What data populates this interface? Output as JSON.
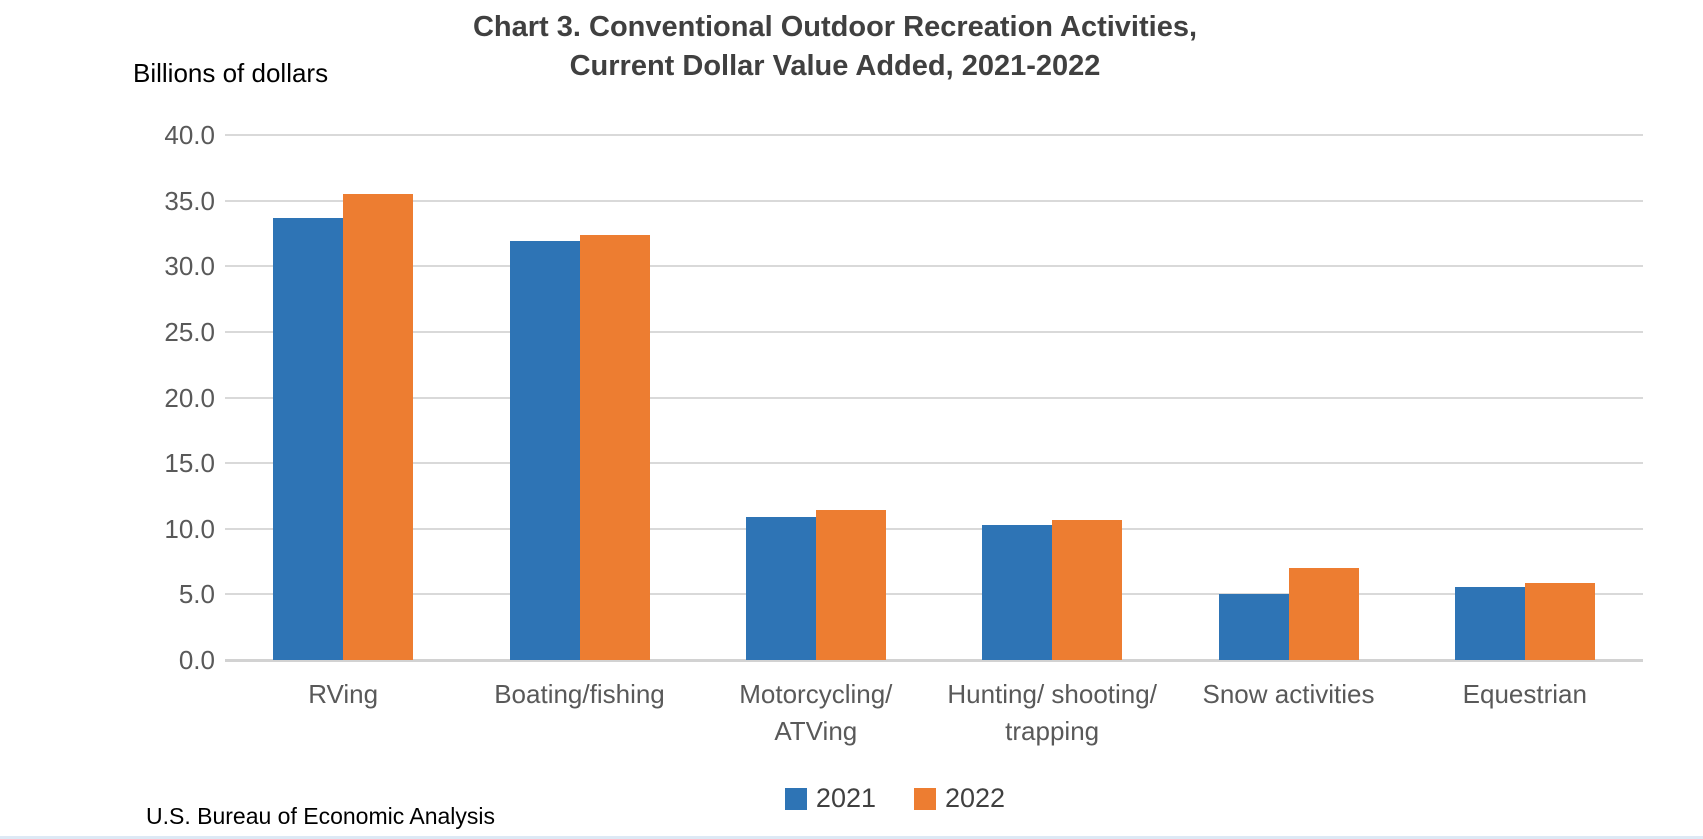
{
  "page": {
    "title_line1": "Chart 3. Conventional Outdoor Recreation Activities,",
    "title_line2": "Current Dollar Value Added, 2021-2022",
    "unit_label": "Billions of dollars",
    "source": "U.S. Bureau of Economic Analysis"
  },
  "colors": {
    "series_2021": "#2e74b5",
    "series_2022": "#ed7d31",
    "title_text": "#404040",
    "axis_text": "#595959",
    "gridline": "#d9d9d9"
  },
  "chart_data": {
    "type": "bar",
    "title": "Chart 3. Conventional Outdoor Recreation Activities, Current Dollar Value Added, 2021-2022",
    "ylabel": "Billions of dollars",
    "categories": [
      "RVing",
      "Boating/fishing",
      "Motorcycling/\nATVing",
      "Hunting/ shooting/\ntrapping",
      "Snow activities",
      "Equestrian"
    ],
    "series": [
      {
        "name": "2021",
        "color": "#2e74b5",
        "values": [
          33.7,
          31.9,
          10.9,
          10.3,
          5.0,
          5.6
        ]
      },
      {
        "name": "2022",
        "color": "#ed7d31",
        "values": [
          35.5,
          32.4,
          11.4,
          10.7,
          7.0,
          5.9
        ]
      }
    ],
    "ylim": [
      0,
      40
    ],
    "ytick_interval": 5,
    "ytick_format_decimals": 1,
    "grid": true,
    "legend_position": "bottom"
  }
}
